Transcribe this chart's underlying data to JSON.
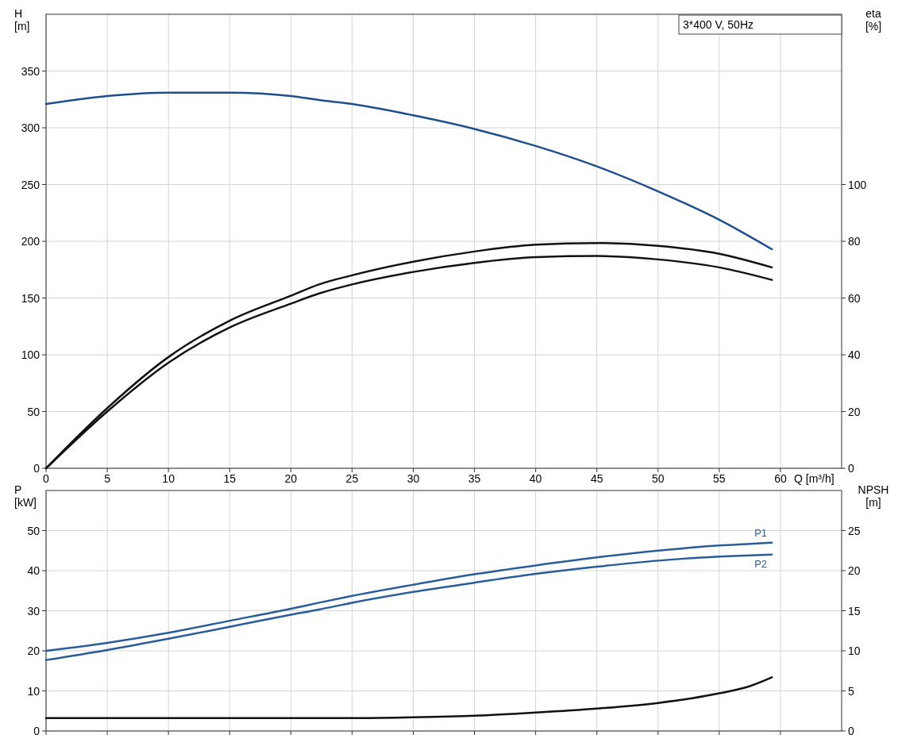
{
  "chart_data": [
    {
      "type": "line",
      "title": "3*400 V, 50Hz",
      "xlabel": "Q [m³/h]",
      "ylabel": "H\n[m]",
      "y2label": "eta\n[%]",
      "x": [
        0,
        5,
        10,
        15,
        20,
        22.3,
        25,
        30,
        35,
        40,
        45,
        50,
        55,
        59.3
      ],
      "xlim": [
        0,
        65
      ],
      "xticks": [
        0,
        5,
        10,
        15,
        20,
        25,
        30,
        35,
        40,
        45,
        50,
        55,
        60
      ],
      "ylim": [
        0,
        400
      ],
      "yticks": [
        0,
        50,
        100,
        150,
        200,
        250,
        300,
        350
      ],
      "y2lim": [
        0,
        160
      ],
      "y2ticks": [
        0,
        20,
        40,
        60,
        80,
        100
      ],
      "grid": true,
      "series": [
        {
          "color": "#1f4e8c",
          "values": [
            321,
            328,
            331,
            331,
            328,
            324.5,
            321,
            311,
            299,
            284,
            266,
            244,
            219,
            193
          ]
        },
        {
          "color": "#111111",
          "axis": "y2",
          "values": [
            0,
            21.2,
            39.2,
            52,
            60.8,
            64.8,
            68,
            72.8,
            76.4,
            78.8,
            79.4,
            78.4,
            75.6,
            70.8
          ]
        },
        {
          "color": "#111111",
          "axis": "y2",
          "values": [
            0,
            20,
            37.2,
            49.6,
            58,
            61.6,
            64.8,
            69.2,
            72.4,
            74.4,
            74.8,
            73.6,
            70.8,
            66.4
          ]
        }
      ]
    },
    {
      "type": "line",
      "ylabel": "P\n[kW]",
      "y2label": "NPSH\n[m]",
      "tick_labels": "y",
      "x": [
        0,
        5,
        10,
        15,
        20,
        22.3,
        25,
        30,
        35,
        40,
        45,
        50,
        55,
        57.5,
        59.3
      ],
      "xlim": [
        0,
        65
      ],
      "xticks": [
        0,
        5,
        10,
        15,
        20,
        25,
        30,
        35,
        40,
        45,
        50,
        55,
        60
      ],
      "ylim": [
        0,
        60
      ],
      "yticks": [
        0,
        10,
        20,
        30,
        40,
        50
      ],
      "y2lim": [
        0,
        30
      ],
      "y2ticks": [
        0,
        5,
        10,
        15,
        20,
        25
      ],
      "grid": true,
      "series": [
        {
          "name": "P1",
          "color": "#2a5c9a",
          "values": [
            20,
            22,
            24.5,
            27.5,
            30.5,
            32,
            33.7,
            36.5,
            39.1,
            41.3,
            43.3,
            45,
            46.3,
            46.7,
            47
          ]
        },
        {
          "name": "P2",
          "color": "#2a5c9a",
          "values": [
            17.7,
            20.2,
            23,
            26,
            29,
            30.3,
            32,
            34.7,
            37,
            39.2,
            41,
            42.5,
            43.5,
            43.8,
            44
          ]
        },
        {
          "color": "#111111",
          "axis": "y2",
          "values": [
            1.6,
            1.6,
            1.6,
            1.6,
            1.6,
            1.6,
            1.6,
            1.7,
            1.9,
            2.3,
            2.8,
            3.5,
            4.7,
            5.6,
            6.7
          ]
        }
      ]
    }
  ]
}
